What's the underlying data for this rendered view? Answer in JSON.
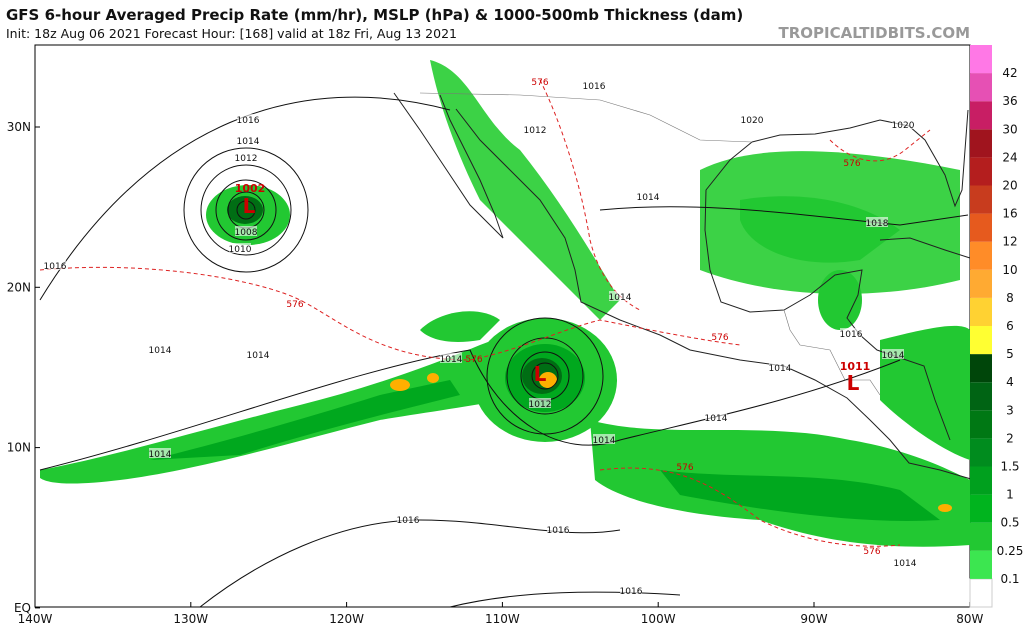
{
  "header": {
    "title": "GFS 6-hour Averaged Precip Rate (mm/hr), MSLP (hPa) & 1000-500mb Thickness (dam)",
    "subtitle": "Init: 18z Aug 06 2021   Forecast Hour: [168]   valid at 18z Fri, Aug 13 2021",
    "site": "TROPICALTIDBITS.COM"
  },
  "map": {
    "lat_labels": [
      "30N",
      "20N",
      "10N",
      "EQ"
    ],
    "lon_labels": [
      "140W",
      "130W",
      "120W",
      "110W",
      "100W",
      "90W",
      "80W"
    ],
    "lows": [
      {
        "label": "1002",
        "symbol": "L"
      },
      {
        "symbol": "L"
      },
      {
        "label": "1011",
        "symbol": "L"
      }
    ],
    "contour_labels": [
      "1016",
      "1014",
      "1012",
      "1008",
      "1010",
      "1016",
      "1014",
      "1014",
      "1014",
      "1014",
      "1016",
      "1016",
      "1016",
      "1014",
      "1014",
      "1014",
      "1016",
      "1014",
      "1014",
      "1012",
      "1016",
      "1020",
      "1020",
      "1018",
      "1014",
      "1014",
      "1012"
    ],
    "thickness_labels": [
      "576",
      "576",
      "576",
      "576",
      "576",
      "576",
      "576"
    ]
  },
  "colorbar": {
    "labels": [
      "0.1",
      "0.25",
      "0.5",
      "1",
      "1.5",
      "2",
      "3",
      "4",
      "5",
      "6",
      "8",
      "10",
      "12",
      "16",
      "20",
      "24",
      "30",
      "36",
      "42"
    ],
    "colors": [
      "#ffffff",
      "#3ce650",
      "#22c832",
      "#00b41e",
      "#00a01e",
      "#008c1e",
      "#007814",
      "#006414",
      "#00460a",
      "#ffff32",
      "#ffd232",
      "#ffaa32",
      "#ff8c28",
      "#e65a1e",
      "#c83c1e",
      "#b41e1e",
      "#a0141e",
      "#c81e64",
      "#e650b4",
      "#ff78e6"
    ]
  }
}
